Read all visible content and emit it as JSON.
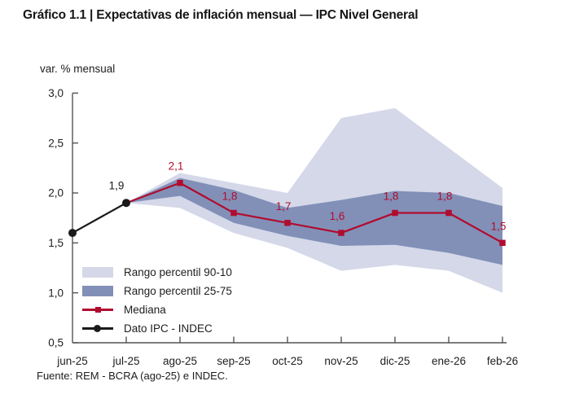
{
  "title": "Gráfico 1.1 | Expectativas de inflación mensual — IPC Nivel General",
  "source": "Fuente: REM - BCRA (ago-25) e INDEC.",
  "chart_data": {
    "type": "area",
    "subtype": "fan-chart",
    "ylabel": "var. % mensual",
    "ylim": [
      0.5,
      3.0
    ],
    "ytick_labels": [
      "0,5",
      "1,0",
      "1,5",
      "2,0",
      "2,5",
      "3,0"
    ],
    "grid": false,
    "categories": [
      "jun-25",
      "jul-25",
      "ago-25",
      "sep-25",
      "oct-25",
      "nov-25",
      "dic-25",
      "ene-26",
      "feb-26"
    ],
    "bands": [
      {
        "name": "Rango percentil 90-10",
        "color": "#d4d8e8",
        "start_index": 1,
        "upper": [
          1.9,
          2.2,
          2.1,
          2.0,
          2.75,
          2.85,
          2.45,
          2.05
        ],
        "lower": [
          1.9,
          1.85,
          1.6,
          1.45,
          1.22,
          1.28,
          1.22,
          1.0
        ]
      },
      {
        "name": "Rango percentil 25-75",
        "color": "#8290b8",
        "start_index": 1,
        "upper": [
          1.9,
          2.15,
          2.03,
          1.85,
          1.93,
          2.02,
          2.0,
          1.87
        ],
        "lower": [
          1.9,
          1.97,
          1.7,
          1.57,
          1.47,
          1.48,
          1.4,
          1.28
        ]
      }
    ],
    "series": [
      {
        "name": "Mediana",
        "color": "#b00c2e",
        "marker": "square",
        "start_index": 1,
        "values": [
          1.9,
          2.1,
          1.8,
          1.7,
          1.6,
          1.8,
          1.8,
          1.5
        ],
        "labels": [
          null,
          "2,1",
          "1,8",
          "1,7",
          "1,6",
          "1,8",
          "1,8",
          "1,5"
        ]
      },
      {
        "name": "Dato IPC - INDEC",
        "color": "#1a1a1a",
        "marker": "circle",
        "start_index": 0,
        "values": [
          1.6,
          1.9
        ],
        "labels": [
          null,
          "1,9"
        ]
      }
    ],
    "legend": [
      {
        "label": "Rango percentil 90-10",
        "swatch": "band",
        "color": "#d4d8e8"
      },
      {
        "label": "Rango percentil 25-75",
        "swatch": "band",
        "color": "#8290b8"
      },
      {
        "label": "Mediana",
        "swatch": "line-square",
        "color": "#b00c2e"
      },
      {
        "label": "Dato IPC - INDEC",
        "swatch": "line-circle",
        "color": "#1a1a1a"
      }
    ],
    "legend_position": "inside-bottom-left",
    "axis_color": "#545454"
  }
}
